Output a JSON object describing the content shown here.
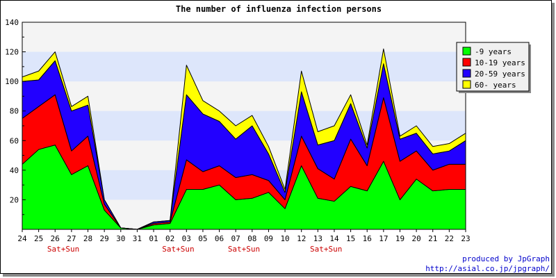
{
  "chart_data": {
    "type": "area",
    "stacked": true,
    "title": "The number of influenza infection persons",
    "categories": [
      "24",
      "25",
      "26",
      "27",
      "28",
      "29",
      "30",
      "31",
      "01",
      "02",
      "03",
      "05",
      "06",
      "07",
      "08",
      "09",
      "10",
      "12",
      "13",
      "14",
      "15",
      "16",
      "17",
      "19",
      "20",
      "21",
      "22",
      "23"
    ],
    "weekend_labels": [
      {
        "category": "26",
        "label": "Sat+Sun"
      },
      {
        "category": "02",
        "label": "Sat+Sun"
      },
      {
        "category": "07",
        "label": "Sat+Sun"
      },
      {
        "category": "13",
        "label": "Sat+Sun"
      }
    ],
    "series": [
      {
        "name": "-9 years",
        "color": "#00ff00",
        "values": [
          44,
          54,
          57,
          37,
          43,
          13,
          1,
          0,
          3,
          4,
          27,
          27,
          30,
          20,
          21,
          25,
          14,
          43,
          21,
          19,
          29,
          26,
          46,
          20,
          34,
          26,
          27,
          27
        ]
      },
      {
        "name": "10-19 years",
        "color": "#ff0000",
        "values": [
          31,
          29,
          34,
          16,
          20,
          4,
          0,
          0,
          1,
          1,
          20,
          12,
          13,
          15,
          16,
          8,
          6,
          20,
          20,
          15,
          32,
          17,
          43,
          26,
          19,
          14,
          17,
          17
        ]
      },
      {
        "name": "20-59 years",
        "color": "#2200ff",
        "values": [
          25,
          18,
          23,
          27,
          21,
          3,
          0,
          0,
          1,
          1,
          44,
          39,
          30,
          26,
          33,
          18,
          5,
          30,
          16,
          26,
          24,
          12,
          23,
          15,
          12,
          11,
          9,
          16
        ]
      },
      {
        "name": "60- years",
        "color": "#ffff00",
        "values": [
          3,
          6,
          6,
          3,
          6,
          0,
          0,
          0,
          0,
          0,
          20,
          9,
          7,
          9,
          7,
          5,
          2,
          14,
          9,
          10,
          6,
          2,
          10,
          2,
          5,
          5,
          5,
          5
        ]
      }
    ],
    "ylim": [
      0,
      140
    ],
    "yticks": [
      "20",
      "40",
      "60",
      "80",
      "100",
      "120",
      "140"
    ],
    "grid": true,
    "legend_position": "right"
  },
  "credit": {
    "line1": "produced by JpGraph",
    "line2": "http://asial.co.jp/jpgraph/"
  },
  "colors": {
    "band": "#dde6fb",
    "plot_bg": "#f4f4f4"
  }
}
